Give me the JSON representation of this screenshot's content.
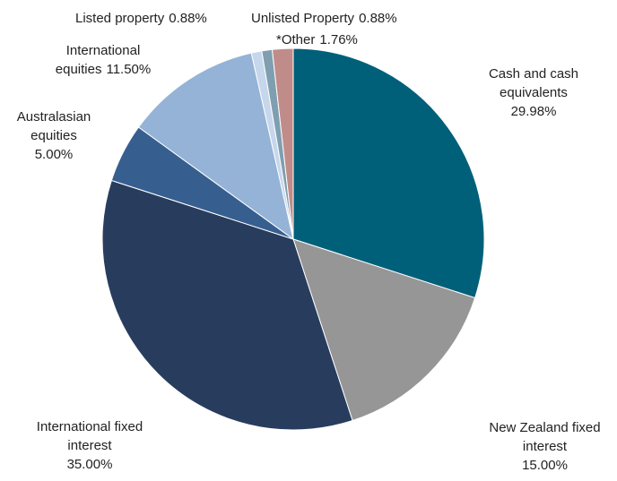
{
  "chart_data": {
    "type": "pie",
    "categories": [
      "Cash and cash equivalents",
      "New Zealand fixed interest",
      "International fixed interest",
      "Australasian equities",
      "International equities",
      "Listed property",
      "Unlisted Property",
      "*Other"
    ],
    "values": [
      29.98,
      15.0,
      35.0,
      5.0,
      11.5,
      0.88,
      0.88,
      1.76
    ],
    "value_labels": [
      "29.98%",
      "15.00%",
      "35.00%",
      "5.00%",
      "11.50%",
      "0.88%",
      "0.88%",
      "1.76%"
    ],
    "colors": [
      "#006079",
      "#969696",
      "#283d5e",
      "#365f8f",
      "#95b3d7",
      "#c6d7ec",
      "#7f9fb0",
      "#c08c8a"
    ]
  }
}
